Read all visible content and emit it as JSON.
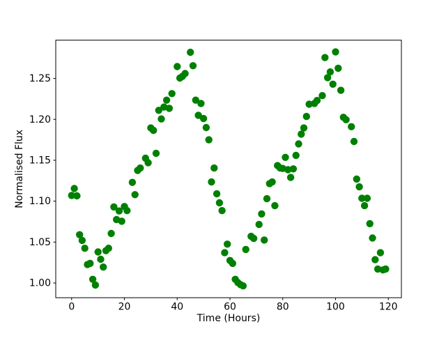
{
  "figure": {
    "background": "#ffffff",
    "spine_color": "#000000"
  },
  "chart_data": {
    "type": "scatter",
    "title": "",
    "xlabel": "Time (Hours)",
    "ylabel": "Normalised Flux",
    "marker": {
      "shape": "circle",
      "color": "#008000",
      "radius_px": 5.2
    },
    "grid": false,
    "legend": null,
    "xlim": [
      -6.02,
      124.96
    ],
    "ylim": [
      0.982,
      1.2968
    ],
    "xticks": [
      0,
      20,
      40,
      60,
      80,
      100,
      120
    ],
    "xtick_labels": [
      "0",
      "20",
      "40",
      "60",
      "80",
      "100",
      "120"
    ],
    "yticks": [
      1.0,
      1.05,
      1.1,
      1.15,
      1.2,
      1.25
    ],
    "ytick_labels": [
      "1.00",
      "1.05",
      "1.10",
      "1.15",
      "1.20",
      "1.25"
    ],
    "x": [
      0,
      1,
      2,
      3,
      4,
      5,
      6,
      7,
      8,
      9,
      10,
      11,
      12,
      13,
      14,
      15,
      16,
      17,
      18,
      19,
      20,
      21,
      23,
      24,
      25,
      26,
      28,
      29,
      30,
      31,
      32,
      33,
      34,
      35,
      36,
      37,
      38,
      40,
      41,
      42,
      43,
      45,
      46,
      47,
      48,
      49,
      50,
      51,
      52,
      53,
      54,
      55,
      56,
      57,
      58,
      59,
      60,
      61,
      62,
      63,
      64,
      65,
      66,
      68,
      69,
      71,
      72,
      73,
      74,
      75,
      76,
      77,
      78,
      79,
      80,
      81,
      82,
      83,
      84,
      85,
      86,
      87,
      88,
      89,
      90,
      92,
      93,
      95,
      96,
      97,
      98,
      99,
      100,
      101,
      102,
      103,
      104,
      106,
      107,
      108,
      109,
      110,
      111,
      112,
      113,
      114,
      115,
      116,
      117,
      118,
      119
    ],
    "y": [
      1.107,
      1.1155,
      1.1065,
      1.059,
      1.052,
      1.0425,
      1.0225,
      1.024,
      1.0045,
      0.9975,
      1.038,
      1.029,
      1.0195,
      1.0395,
      1.0425,
      1.0605,
      1.093,
      1.0775,
      1.088,
      1.0755,
      1.0935,
      1.0885,
      1.123,
      1.108,
      1.1375,
      1.1405,
      1.1525,
      1.147,
      1.1895,
      1.1865,
      1.1585,
      1.211,
      1.2005,
      1.215,
      1.2235,
      1.2135,
      1.2315,
      1.2645,
      1.2505,
      1.2525,
      1.256,
      1.282,
      1.2655,
      1.2235,
      1.205,
      1.2195,
      1.201,
      1.19,
      1.175,
      1.1235,
      1.1405,
      1.109,
      1.098,
      1.0885,
      1.037,
      1.0475,
      1.0275,
      1.024,
      1.0045,
      1.0005,
      0.998,
      0.9965,
      1.041,
      1.057,
      1.0545,
      1.0715,
      1.0845,
      1.0525,
      1.103,
      1.1215,
      1.1235,
      1.0945,
      1.1435,
      1.1405,
      1.14,
      1.1535,
      1.1385,
      1.129,
      1.1395,
      1.156,
      1.17,
      1.182,
      1.1895,
      1.2035,
      1.2185,
      1.2195,
      1.223,
      1.229,
      1.2755,
      1.251,
      1.258,
      1.243,
      1.2825,
      1.2625,
      1.2355,
      1.2025,
      1.1995,
      1.191,
      1.173,
      1.127,
      1.1175,
      1.1035,
      1.0945,
      1.1035,
      1.0725,
      1.055,
      1.0285,
      1.017,
      1.037,
      1.016,
      1.017
    ]
  }
}
